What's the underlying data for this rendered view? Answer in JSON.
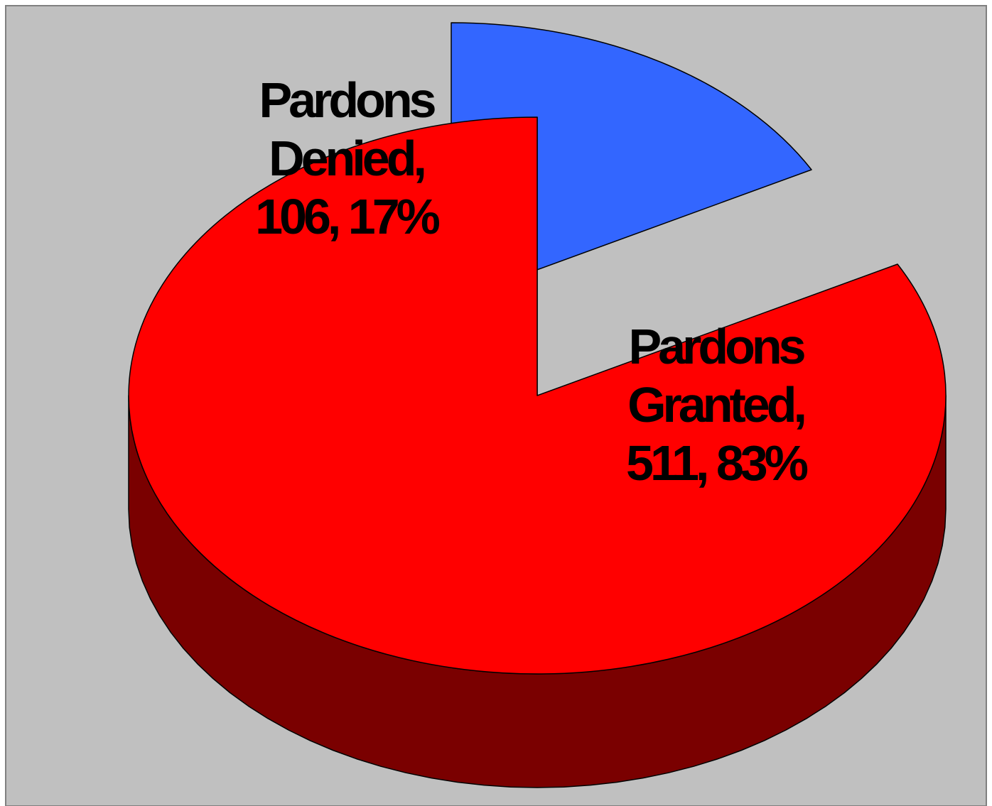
{
  "chart_data": {
    "type": "pie",
    "variant": "3d-exploded",
    "title": "",
    "slices": [
      {
        "name": "Pardons Denied",
        "value": 106,
        "percent": 17,
        "color": "#3366FF",
        "side_color": "#1A3380",
        "label_lines": [
          "Pardons",
          "Denied,",
          "106, 17%"
        ]
      },
      {
        "name": "Pardons Granted",
        "value": 511,
        "percent": 83,
        "color": "#FF0000",
        "side_color": "#7A0000",
        "label_lines": [
          "Pardons",
          "Granted,",
          "511, 83%"
        ]
      }
    ],
    "legend": false,
    "background_color": "#C0C0C0"
  }
}
